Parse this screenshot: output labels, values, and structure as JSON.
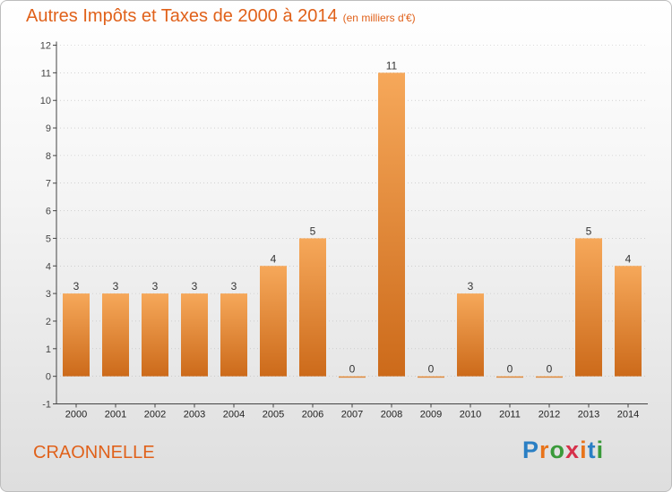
{
  "title": {
    "main": "Autres Impôts et Taxes de 2000 à 2014",
    "unit": "(en milliers d'€)"
  },
  "commune": "CRAONNELLE",
  "logo": {
    "text": "Proxiti",
    "colors": [
      "#2a7fc4",
      "#e8731a",
      "#3a9a3a",
      "#d6304a",
      "#e8731a",
      "#2a7fc4",
      "#3a9a3a"
    ]
  },
  "colors": {
    "bar_top": "#f6a85a",
    "bar_bottom": "#cc6a1a",
    "axis": "#444444",
    "grid": "#bbbbbb",
    "title": "#e0611a"
  },
  "chart_data": {
    "type": "bar",
    "title": "Autres Impôts et Taxes de 2000 à 2014",
    "subtitle": "(en milliers d'€)",
    "categories": [
      "2000",
      "2001",
      "2002",
      "2003",
      "2004",
      "2005",
      "2006",
      "2007",
      "2008",
      "2009",
      "2010",
      "2011",
      "2012",
      "2013",
      "2014"
    ],
    "values": [
      3,
      3,
      3,
      3,
      3,
      4,
      5,
      0,
      11,
      0,
      3,
      0,
      0,
      5,
      4
    ],
    "value_labels": [
      "3",
      "3",
      "3",
      "3",
      "3",
      "4",
      "5",
      "0",
      "11",
      "0",
      "3",
      "0",
      "0",
      "5",
      "4"
    ],
    "y_ticks": [
      -1,
      0,
      1,
      2,
      3,
      4,
      5,
      6,
      7,
      8,
      9,
      10,
      11,
      12
    ],
    "ylim": [
      -1,
      12
    ],
    "grid": true,
    "xlabel": "",
    "ylabel": ""
  }
}
